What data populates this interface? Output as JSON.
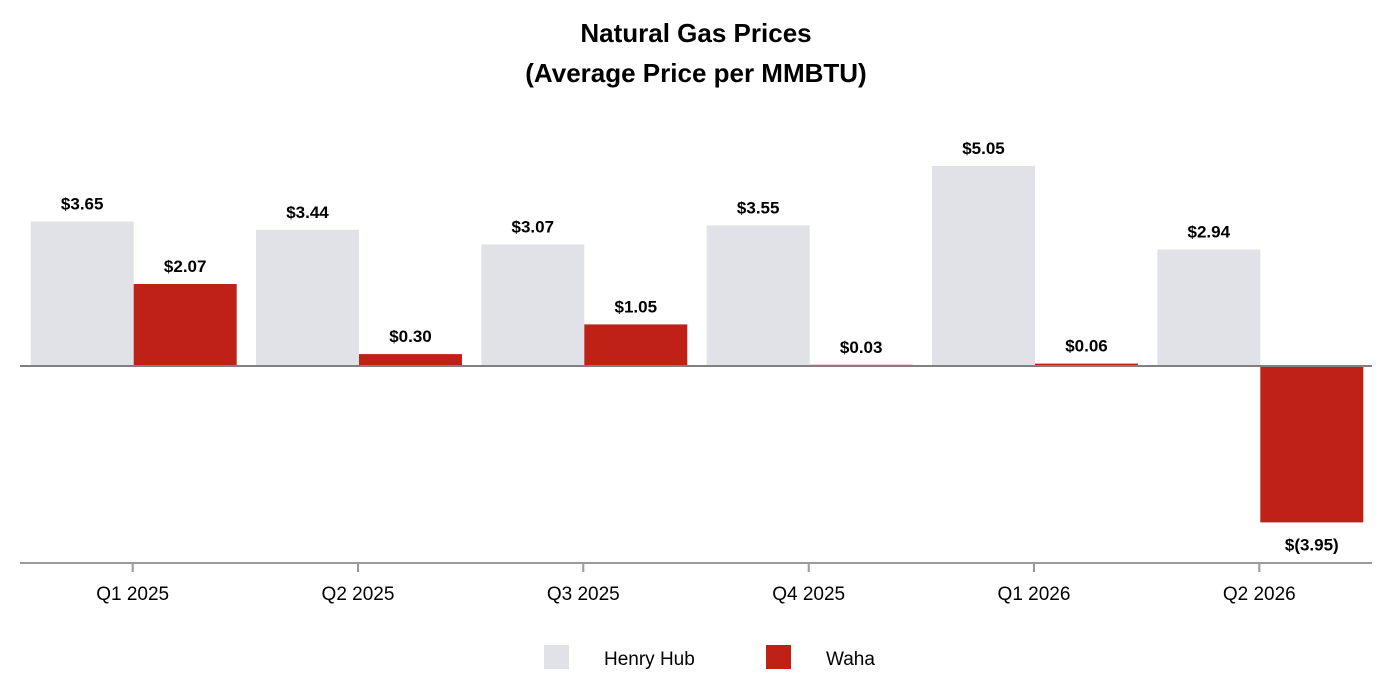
{
  "chart_data": {
    "type": "bar",
    "title": [
      "Natural Gas Prices",
      "(Average Price per MMBTU)"
    ],
    "categories": [
      "Q1 2025",
      "Q2 2025",
      "Q3 2025",
      "Q4 2025",
      "Q1 2026",
      "Q2 2026"
    ],
    "series": [
      {
        "name": "Henry Hub",
        "color": "#e1e2e8",
        "values": [
          3.65,
          3.44,
          3.07,
          3.55,
          5.05,
          2.94
        ],
        "labels": [
          "$3.65",
          "$3.44",
          "$3.07",
          "$3.55",
          "$5.05",
          "$2.94"
        ]
      },
      {
        "name": "Waha",
        "color": "#c02117",
        "values": [
          2.07,
          0.3,
          1.05,
          0.03,
          0.06,
          -3.95
        ],
        "labels": [
          "$2.07",
          "$0.30",
          "$1.05",
          "$0.03",
          "$0.06",
          "$(3.95)"
        ]
      }
    ],
    "xlabel": "",
    "ylabel": "",
    "ylim": [
      -5,
      5
    ],
    "grid": false,
    "legend": "bottom-center"
  }
}
